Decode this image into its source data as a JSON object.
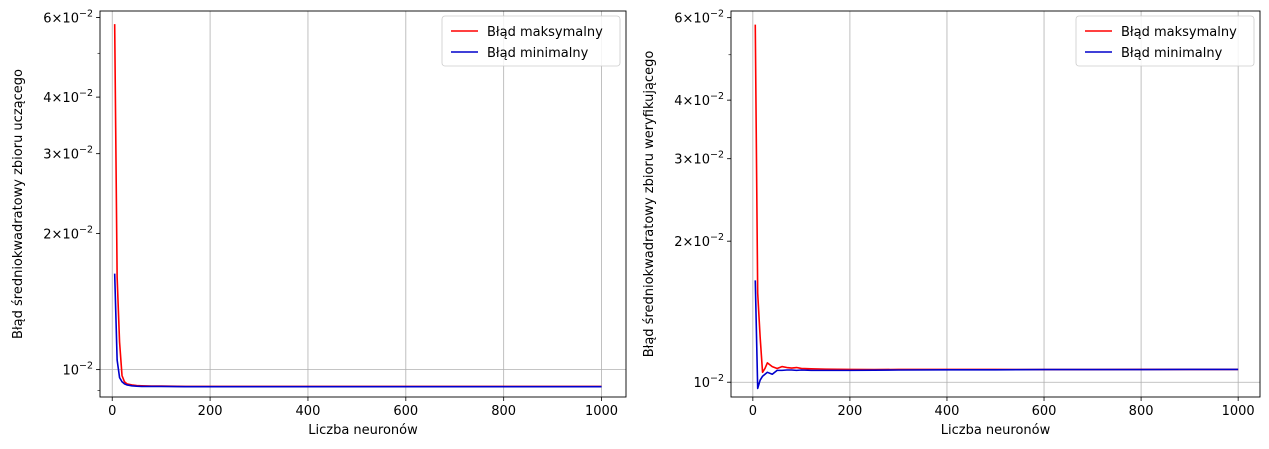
{
  "chart_data": [
    {
      "type": "line",
      "xlabel": "Liczba neuronów",
      "ylabel": "Błąd średniokwadratowy zbioru uczącego",
      "yscale": "log",
      "xlim": [
        -25,
        1050
      ],
      "ylim": [
        0.0087,
        0.062
      ],
      "grid": true,
      "legend_position": "top-right",
      "x_ticks": [
        {
          "value": 0,
          "label": "0"
        },
        {
          "value": 200,
          "label": "200"
        },
        {
          "value": 400,
          "label": "400"
        },
        {
          "value": 600,
          "label": "600"
        },
        {
          "value": 800,
          "label": "800"
        },
        {
          "value": 1000,
          "label": "1000"
        }
      ],
      "y_ticks": [
        {
          "value": 0.06,
          "mant": "6",
          "exp": "−2"
        },
        {
          "value": 0.04,
          "mant": "4",
          "exp": "−2"
        },
        {
          "value": 0.03,
          "mant": "3",
          "exp": "−2"
        },
        {
          "value": 0.02,
          "mant": "2",
          "exp": "−2"
        },
        {
          "value": 0.01,
          "mant": "",
          "exp": "−2"
        }
      ],
      "series": [
        {
          "name": "Błąd maksymalny",
          "color": "#ff0000",
          "x": [
            5,
            10,
            15,
            20,
            25,
            30,
            40,
            50,
            60,
            80,
            100,
            150,
            200,
            300,
            400,
            500,
            600,
            700,
            800,
            900,
            1000
          ],
          "y": [
            0.058,
            0.016,
            0.0115,
            0.0097,
            0.0094,
            0.0093,
            0.00925,
            0.00922,
            0.00921,
            0.0092,
            0.0092,
            0.00918,
            0.00918,
            0.00918,
            0.00918,
            0.00918,
            0.00918,
            0.00918,
            0.00918,
            0.00918,
            0.00918
          ]
        },
        {
          "name": "Błąd minimalny",
          "color": "#0000cc",
          "x": [
            5,
            10,
            15,
            20,
            25,
            30,
            40,
            50,
            60,
            80,
            100,
            150,
            200,
            300,
            400,
            500,
            600,
            700,
            800,
            900,
            1000
          ],
          "y": [
            0.0163,
            0.0105,
            0.0096,
            0.0094,
            0.0093,
            0.00925,
            0.00921,
            0.00919,
            0.00918,
            0.00918,
            0.00918,
            0.00917,
            0.00917,
            0.00917,
            0.00917,
            0.00917,
            0.00917,
            0.00917,
            0.00917,
            0.00917,
            0.00917
          ]
        }
      ]
    },
    {
      "type": "line",
      "xlabel": "Liczba neuronów",
      "ylabel": "Błąd średniokwadratowy zbioru weryfikującego",
      "yscale": "log",
      "xlim": [
        -45,
        1045
      ],
      "ylim": [
        0.0093,
        0.062
      ],
      "grid": true,
      "legend_position": "top-right",
      "x_ticks": [
        {
          "value": 0,
          "label": "0"
        },
        {
          "value": 200,
          "label": "200"
        },
        {
          "value": 400,
          "label": "400"
        },
        {
          "value": 600,
          "label": "600"
        },
        {
          "value": 800,
          "label": "800"
        },
        {
          "value": 1000,
          "label": "1000"
        }
      ],
      "y_ticks": [
        {
          "value": 0.06,
          "mant": "6",
          "exp": "−2"
        },
        {
          "value": 0.04,
          "mant": "4",
          "exp": "−2"
        },
        {
          "value": 0.03,
          "mant": "3",
          "exp": "−2"
        },
        {
          "value": 0.02,
          "mant": "2",
          "exp": "−2"
        },
        {
          "value": 0.01,
          "mant": "",
          "exp": "−2"
        }
      ],
      "series": [
        {
          "name": "Błąd maksymalny",
          "color": "#ff0000",
          "x": [
            5,
            10,
            15,
            20,
            25,
            30,
            40,
            50,
            60,
            70,
            80,
            90,
            100,
            120,
            150,
            200,
            250,
            300,
            400,
            500,
            600,
            700,
            800,
            900,
            1000
          ],
          "y": [
            0.058,
            0.0155,
            0.0125,
            0.0105,
            0.0107,
            0.011,
            0.0108,
            0.0107,
            0.0108,
            0.01075,
            0.01072,
            0.01075,
            0.0107,
            0.01068,
            0.01066,
            0.01065,
            0.01064,
            0.01065,
            0.01065,
            0.01065,
            0.01064,
            0.01064,
            0.01065,
            0.01065,
            0.01065
          ]
        },
        {
          "name": "Błąd minimalny",
          "color": "#0000cc",
          "x": [
            5,
            10,
            15,
            20,
            25,
            30,
            40,
            50,
            60,
            70,
            80,
            90,
            100,
            120,
            150,
            200,
            250,
            300,
            400,
            500,
            600,
            700,
            800,
            900,
            1000
          ],
          "y": [
            0.0165,
            0.0097,
            0.0101,
            0.0103,
            0.0104,
            0.0105,
            0.0104,
            0.0106,
            0.0106,
            0.01062,
            0.01062,
            0.0106,
            0.01062,
            0.0106,
            0.0106,
            0.0106,
            0.01061,
            0.01062,
            0.01063,
            0.01063,
            0.01064,
            0.01064,
            0.01064,
            0.01065,
            0.01065
          ]
        }
      ]
    }
  ]
}
